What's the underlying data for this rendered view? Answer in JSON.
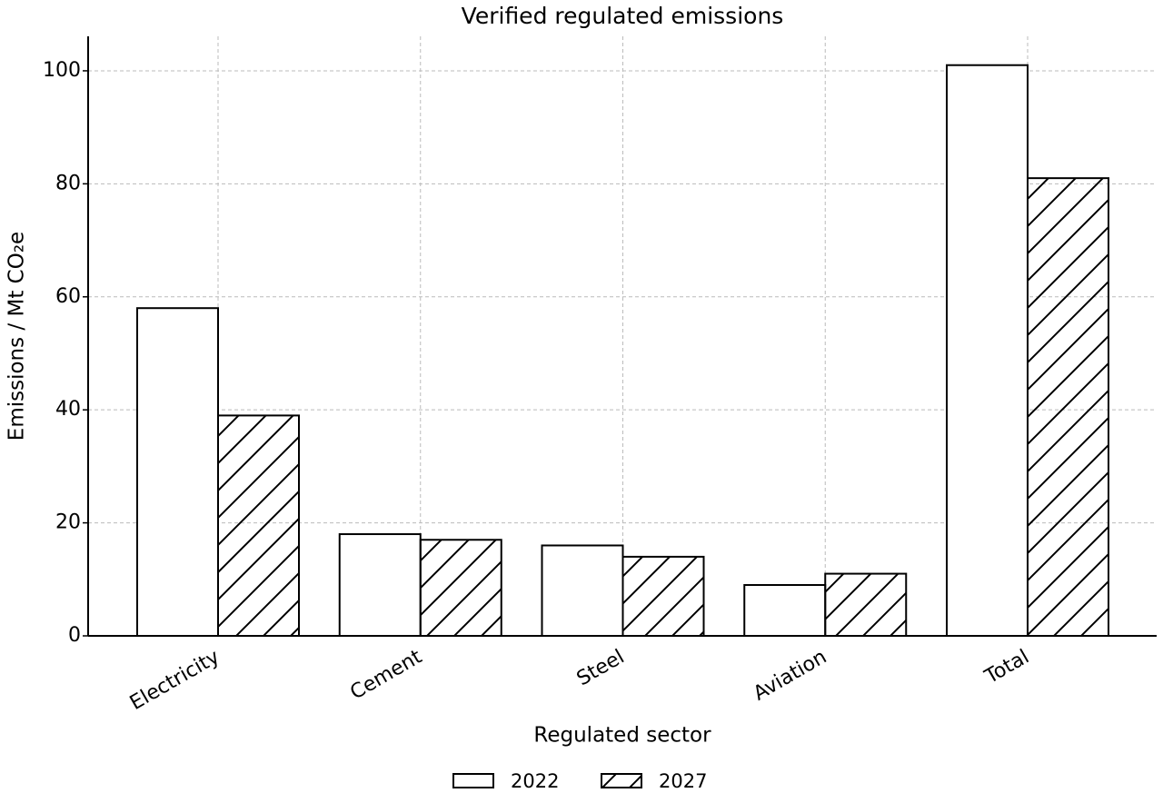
{
  "chart_data": {
    "type": "bar",
    "title": "Verified regulated emissions",
    "x_label": "Regulated sector",
    "y_label": "Emissions / Mt CO₂e",
    "categories": [
      "Electricity",
      "Cement",
      "Steel",
      "Aviation",
      "Total"
    ],
    "series": [
      {
        "name": "2022",
        "color": "#ffffff",
        "hatch": null,
        "values": [
          58,
          18,
          16,
          9,
          101
        ]
      },
      {
        "name": "2027",
        "color": "#ffffff",
        "hatch": "/",
        "values": [
          39,
          17,
          14,
          11,
          81
        ]
      }
    ],
    "ylim": [
      0,
      106.1
    ],
    "yticks": [
      0,
      20,
      40,
      60,
      80,
      100
    ],
    "grid": true,
    "legend": "bottom"
  }
}
